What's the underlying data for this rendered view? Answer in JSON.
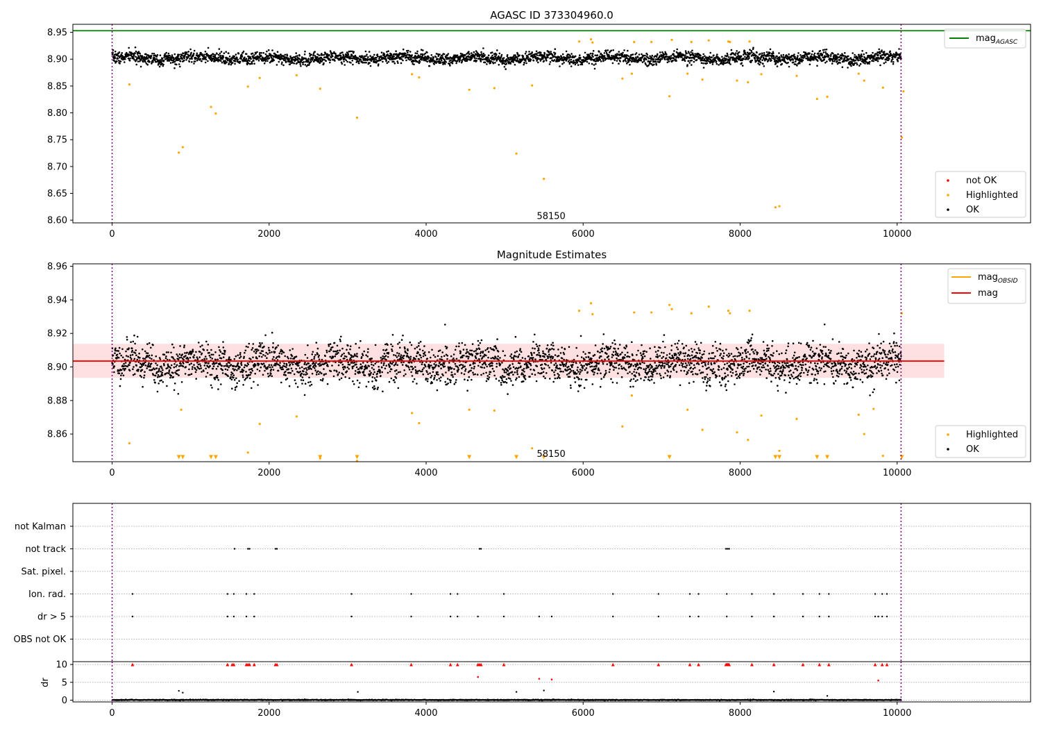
{
  "chart_data": [
    {
      "type": "scatter",
      "title": "AGASC ID 373304960.0",
      "xlim": [
        -500,
        11700
      ],
      "ylim": [
        8.595,
        8.965
      ],
      "xticks": [
        0,
        2000,
        4000,
        6000,
        8000,
        10000
      ],
      "yticks": [
        8.6,
        8.65,
        8.7,
        8.75,
        8.8,
        8.85,
        8.9,
        8.95
      ],
      "vlines": [
        0,
        10050
      ],
      "obsid_annotation": {
        "text": "58150",
        "x": 5000,
        "y": 8.607
      },
      "hline": {
        "name": "mag",
        "subscript": "AGASC",
        "y": 8.953,
        "x": [
          -500,
          11700
        ],
        "color": "#008000"
      },
      "ok_band": {
        "x_start": 0,
        "x_end": 10050,
        "center": 8.902,
        "amplitude": 0.009,
        "color": "#000000"
      },
      "highlighted": {
        "color": "#ffa500",
        "x": [
          220,
          850,
          900,
          1260,
          1320,
          1730,
          1880,
          2350,
          2650,
          3120,
          3820,
          3910,
          4550,
          4870,
          5150,
          5350,
          5500,
          5950,
          6100,
          6120,
          6500,
          6620,
          6650,
          6870,
          7100,
          7130,
          7330,
          7380,
          7520,
          7600,
          7850,
          7870,
          7960,
          8100,
          8120,
          8270,
          8450,
          8500,
          8720,
          8980,
          9110,
          9510,
          9580,
          9820,
          10060,
          10080
        ],
        "y": [
          8.853,
          8.726,
          8.736,
          8.811,
          8.799,
          8.849,
          8.865,
          8.87,
          8.845,
          8.791,
          8.872,
          8.866,
          8.843,
          8.846,
          8.724,
          8.851,
          8.677,
          8.933,
          8.937,
          8.931,
          8.864,
          8.873,
          8.932,
          8.932,
          8.831,
          8.936,
          8.873,
          8.932,
          8.862,
          8.935,
          8.933,
          8.932,
          8.86,
          8.857,
          8.933,
          8.872,
          8.624,
          8.626,
          8.869,
          8.826,
          8.83,
          8.873,
          8.86,
          8.847,
          8.754,
          8.84
        ]
      },
      "legends": [
        {
          "placement": "upper-right",
          "entries": [
            {
              "label": "mag",
              "subscript": "AGASC",
              "marker": "line",
              "color": "#008000"
            }
          ]
        },
        {
          "placement": "lower-right",
          "entries": [
            {
              "label": "not OK",
              "marker": "dot",
              "color": "#ff0000"
            },
            {
              "label": "Highlighted",
              "marker": "dot",
              "color": "#ffa500"
            },
            {
              "label": "OK",
              "marker": "dot",
              "color": "#000000"
            }
          ]
        }
      ]
    },
    {
      "type": "scatter",
      "title": "Magnitude Estimates",
      "xlim": [
        -500,
        11700
      ],
      "ylim": [
        8.8435,
        8.9615
      ],
      "xticks": [
        0,
        2000,
        4000,
        6000,
        8000,
        10000
      ],
      "yticks": [
        8.86,
        8.88,
        8.9,
        8.92,
        8.94,
        8.96
      ],
      "vlines": [
        0,
        10050
      ],
      "obsid_annotation": {
        "text": "58150",
        "x": 5000,
        "y": 8.848
      },
      "mag_line": {
        "name": "mag",
        "y": 8.9035,
        "x": [
          -500,
          10600
        ],
        "color": "#ff0000"
      },
      "mag_band": {
        "y_low": 8.8935,
        "y_high": 8.9138,
        "x": [
          -500,
          10600
        ],
        "color": "#ffcccc"
      },
      "mag_obsid": {
        "name": "mag",
        "subscript": "OBSID",
        "color": "#ffa500"
      },
      "ok_band": {
        "x_start": 0,
        "x_end": 10050,
        "center": 8.902,
        "amplitude": 0.009,
        "color": "#000000"
      },
      "highlighted": {
        "color": "#ffa500",
        "x": [
          220,
          880,
          1730,
          1880,
          2350,
          2650,
          3120,
          3820,
          3910,
          4550,
          4870,
          5350,
          5950,
          6100,
          6120,
          6500,
          6620,
          6650,
          6870,
          7100,
          7130,
          7330,
          7380,
          7520,
          7600,
          7850,
          7870,
          7960,
          8100,
          8120,
          8270,
          8500,
          8720,
          9510,
          9580,
          9700,
          9820,
          10060
        ],
        "y": [
          8.8545,
          8.8745,
          8.849,
          8.866,
          8.8705,
          8.8455,
          8.844,
          8.8725,
          8.8665,
          8.8745,
          8.874,
          8.8515,
          8.9335,
          8.938,
          8.9315,
          8.8645,
          8.883,
          8.9325,
          8.9325,
          8.937,
          8.9345,
          8.8745,
          8.932,
          8.8625,
          8.936,
          8.9335,
          8.932,
          8.861,
          8.8565,
          8.9335,
          8.871,
          8.85,
          8.869,
          8.8715,
          8.86,
          8.875,
          8.847,
          8.932
        ]
      },
      "clipped_markers": {
        "marker": "triangle-down",
        "color": "#ffa500",
        "x": [
          850,
          900,
          1260,
          1320,
          2650,
          3120,
          4550,
          5150,
          5500,
          7100,
          8450,
          8500,
          8980,
          9110,
          10060
        ],
        "y": [
          8.845,
          8.845,
          8.845,
          8.845,
          8.845,
          8.845,
          8.845,
          8.845,
          8.845,
          8.845,
          8.845,
          8.845,
          8.845,
          8.845,
          8.845
        ]
      },
      "legends": [
        {
          "placement": "upper-right",
          "entries": [
            {
              "label": "mag",
              "subscript": "OBSID",
              "marker": "line",
              "color": "#ffa500"
            },
            {
              "label": "mag",
              "marker": "line",
              "color": "#ff0000"
            }
          ]
        },
        {
          "placement": "lower-right",
          "entries": [
            {
              "label": "Highlighted",
              "marker": "dot",
              "color": "#ffa500"
            },
            {
              "label": "OK",
              "marker": "dot",
              "color": "#000000"
            }
          ]
        }
      ]
    },
    {
      "type": "scatter",
      "xlim": [
        -500,
        11700
      ],
      "categories": [
        "not Kalman",
        "not track",
        "Sat. pixel.",
        "Ion. rad.",
        "dr > 5",
        "OBS not OK"
      ],
      "grid": "dotted-horizontal",
      "vlines": [
        0,
        10050
      ],
      "flags": [
        {
          "category": "not track",
          "x": [
            1560,
            1730,
            1750,
            2080,
            2100,
            4680,
            4700,
            7820,
            7840,
            7860
          ]
        },
        {
          "category": "Ion. rad.",
          "x": [
            260,
            1470,
            1550,
            1710,
            1810,
            3050,
            3810,
            4310,
            4400,
            4990,
            6380,
            6960,
            7360,
            7470,
            7830,
            8150,
            8430,
            8800,
            9010,
            9130,
            9720,
            9810,
            9870
          ]
        },
        {
          "category": "dr > 5",
          "x": [
            260,
            1470,
            1550,
            1710,
            1810,
            3050,
            3810,
            4310,
            4400,
            4660,
            4990,
            5440,
            5600,
            6380,
            6960,
            7360,
            7470,
            7830,
            8150,
            8430,
            8800,
            9010,
            9130,
            9720,
            9760,
            9810,
            9870
          ]
        }
      ]
    },
    {
      "type": "scatter",
      "ylabel": "dr",
      "xlim": [
        -500,
        11700
      ],
      "ylim": [
        -0.5,
        10.8
      ],
      "xticks": [
        0,
        2000,
        4000,
        6000,
        8000,
        10000
      ],
      "yticks": [
        0,
        5,
        10
      ],
      "vlines": [
        0,
        10050
      ],
      "clipped": {
        "marker": "triangle-up",
        "color": "#ff0000",
        "x": [
          260,
          1470,
          1530,
          1550,
          1710,
          1730,
          1750,
          1810,
          2080,
          2100,
          3050,
          3810,
          4310,
          4400,
          4660,
          4680,
          4700,
          4990,
          6380,
          6960,
          7360,
          7470,
          7820,
          7830,
          7840,
          7850,
          7860,
          8150,
          8430,
          8800,
          9010,
          9130,
          9720,
          9810,
          9870
        ],
        "y": [
          10,
          10,
          10,
          10,
          10,
          10,
          10,
          10,
          10,
          10,
          10,
          10,
          10,
          10,
          10,
          10,
          10,
          10,
          10,
          10,
          10,
          10,
          10,
          10,
          10,
          10,
          10,
          10,
          10,
          10,
          10,
          10,
          10,
          10,
          10
        ]
      },
      "high_points": {
        "color": "#ff0000",
        "x": [
          4660,
          5440,
          5600,
          9760
        ],
        "y": [
          6.5,
          6.0,
          5.8,
          5.5
        ]
      },
      "outliers": {
        "color": "#000000",
        "x": [
          850,
          900,
          3130,
          5150,
          5500,
          8430,
          9110
        ],
        "y": [
          2.6,
          2.1,
          2.3,
          2.3,
          2.7,
          2.4,
          1.2
        ]
      },
      "ok_band": {
        "x_start": 0,
        "x_end": 10050,
        "center": 0.05,
        "amplitude": 0.1,
        "color": "#000000"
      }
    }
  ]
}
